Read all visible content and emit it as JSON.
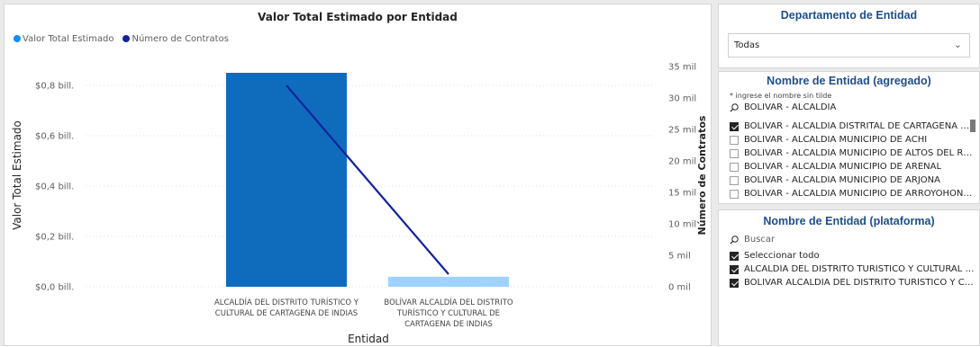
{
  "chart": {
    "title": "Valor Total Estimado por Entidad",
    "legend": [
      {
        "label": "Valor Total Estimado",
        "color": "#118dff"
      },
      {
        "label": "Número de Contratos",
        "color": "#12239e"
      }
    ],
    "x_axis_title": "Entidad",
    "y_left_title": "Valor Total Estimado",
    "y_right_title": "Número de Contratos",
    "y_left_ticks": [
      "$0,0 bill.",
      "$0,2 bill.",
      "$0,4 bill.",
      "$0,6 bill.",
      "$0,8 bill."
    ],
    "y_right_ticks": [
      "0 mil",
      "5 mil",
      "10 mil",
      "15 mil",
      "20 mil",
      "25 mil",
      "30 mil",
      "35 mil"
    ],
    "category_labels": [
      [
        "ALCALDÍA DEL DISTRITO TURÍSTICO Y",
        "CULTURAL DE CARTAGENA DE INDIAS"
      ],
      [
        "BOLÍVAR ALCALDÍA DEL DISTRITO",
        "TURÍSTICO Y CULTURAL DE",
        "CARTAGENA DE INDIAS"
      ]
    ]
  },
  "chart_data": {
    "type": "bar",
    "title": "Valor Total Estimado por Entidad",
    "categories": [
      "ALCALDÍA DEL DISTRITO TURÍSTICO Y CULTURAL DE CARTAGENA DE INDIAS",
      "BOLÍVAR ALCALDÍA DEL DISTRITO TURÍSTICO Y CULTURAL DE CARTAGENA DE INDIAS"
    ],
    "series": [
      {
        "name": "Valor Total Estimado",
        "type": "bar",
        "axis": "left",
        "unit": "bill.",
        "values": [
          0.85,
          0.04
        ],
        "color": "#118dff"
      },
      {
        "name": "Número de Contratos",
        "type": "line",
        "axis": "right",
        "unit": "mil",
        "values": [
          32,
          2
        ],
        "color": "#12239e"
      }
    ],
    "xlabel": "Entidad",
    "ylabel": "Valor Total Estimado",
    "y2label": "Número de Contratos",
    "ylim": [
      0,
      0.9
    ],
    "y2lim": [
      0,
      36
    ],
    "bar_colors": [
      "#0f6cbd",
      "#9fd2ff"
    ],
    "grid": true,
    "legend_position": "top-left"
  },
  "slicer_departamento": {
    "title": "Departamento de Entidad",
    "selected": "Todas"
  },
  "slicer_agregado": {
    "title": "Nombre de Entidad (agregado)",
    "hint": "* ingrese el nombre sin tilde",
    "search_value": "BOLIVAR - ALCALDIA",
    "items": [
      {
        "label": "BOLIVAR - ALCALDIA DISTRITAL DE CARTAGENA DE ...",
        "checked": true
      },
      {
        "label": "BOLIVAR - ALCALDIA MUNICIPIO DE ACHI",
        "checked": false
      },
      {
        "label": "BOLIVAR - ALCALDIA MUNICIPIO DE ALTOS DEL RO...",
        "checked": false
      },
      {
        "label": "BOLIVAR - ALCALDIA MUNICIPIO DE ARENAL",
        "checked": false
      },
      {
        "label": "BOLIVAR - ALCALDIA MUNICIPIO DE ARJONA",
        "checked": false
      },
      {
        "label": "BOLIVAR - ALCALDIA MUNICIPIO DE ARROYOHONDO",
        "checked": false
      }
    ]
  },
  "slicer_plataforma": {
    "title": "Nombre de Entidad (plataforma)",
    "search_placeholder": "Buscar",
    "items": [
      {
        "label": "Seleccionar todo",
        "checked": true
      },
      {
        "label": "ALCALDÍA DEL DISTRITO TURÍSTICO Y CULTURAL DE...",
        "checked": true
      },
      {
        "label": "BOLÍVAR ALCALDÍA DEL DISTRITO TURÍSTICO Y CUL...",
        "checked": true
      }
    ]
  }
}
